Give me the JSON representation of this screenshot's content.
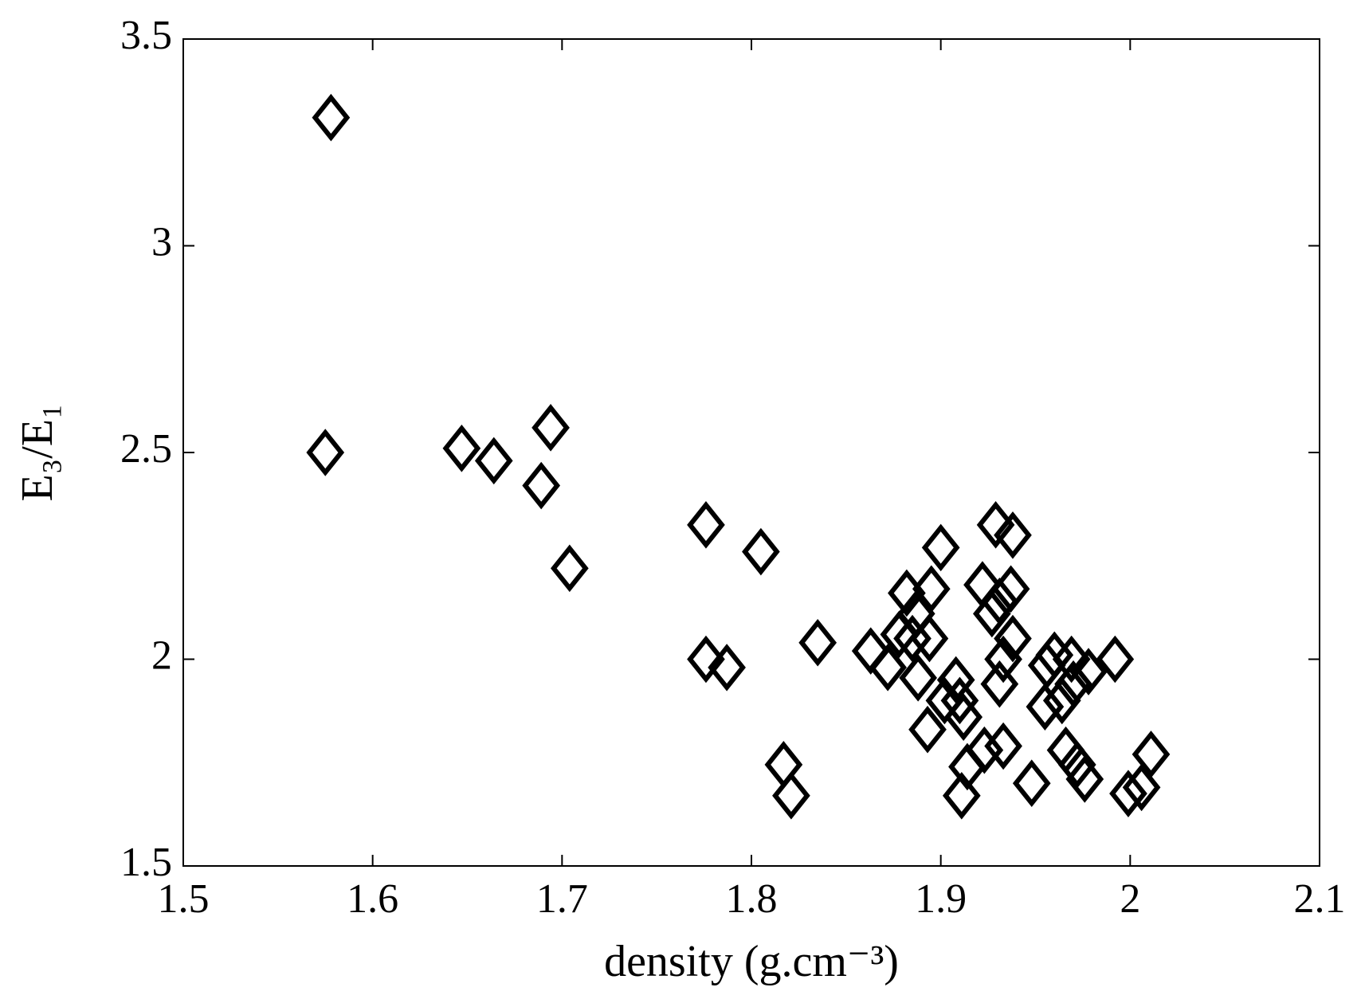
{
  "chart_data": {
    "type": "scatter",
    "xlabel": "density (g.cm⁻³)",
    "ylabel": "E₃/E₁",
    "xlim": [
      1.5,
      2.1
    ],
    "ylim": [
      1.5,
      3.5
    ],
    "xticks": [
      1.5,
      1.6,
      1.7,
      1.8,
      1.9,
      2,
      2.1
    ],
    "yticks": [
      1.5,
      2,
      2.5,
      3,
      3.5
    ],
    "marker": "diamond",
    "color": "#000000",
    "x": [
      1.578,
      1.575,
      1.647,
      1.664,
      1.689,
      1.694,
      1.704,
      1.776,
      1.805,
      1.776,
      1.787,
      1.817,
      1.821,
      1.835,
      1.863,
      1.872,
      1.878,
      1.882,
      1.887,
      1.885,
      1.888,
      1.894,
      1.895,
      1.893,
      1.9,
      1.902,
      1.908,
      1.91,
      1.912,
      1.914,
      1.911,
      1.923,
      1.922,
      1.927,
      1.929,
      1.931,
      1.933,
      1.931,
      1.933,
      1.938,
      1.937,
      1.938,
      1.948,
      1.955,
      1.956,
      1.96,
      1.964,
      1.966,
      1.969,
      1.97,
      1.972,
      1.976,
      1.978,
      1.992,
      1.999,
      2.006,
      2.011
    ],
    "y": [
      3.31,
      2.5,
      2.51,
      2.48,
      2.42,
      2.56,
      2.22,
      2.325,
      2.26,
      2.0,
      1.98,
      1.745,
      1.67,
      2.04,
      2.02,
      1.98,
      2.06,
      2.16,
      2.11,
      2.05,
      1.955,
      2.05,
      2.17,
      1.83,
      2.27,
      1.9,
      1.95,
      1.9,
      1.86,
      1.74,
      1.67,
      1.78,
      2.18,
      2.11,
      2.325,
      2.14,
      2.0,
      1.94,
      1.79,
      2.3,
      2.17,
      2.05,
      1.7,
      1.885,
      1.985,
      2.01,
      1.9,
      1.78,
      2.0,
      1.94,
      1.745,
      1.71,
      1.97,
      2.0,
      1.675,
      1.69,
      1.77
    ]
  }
}
